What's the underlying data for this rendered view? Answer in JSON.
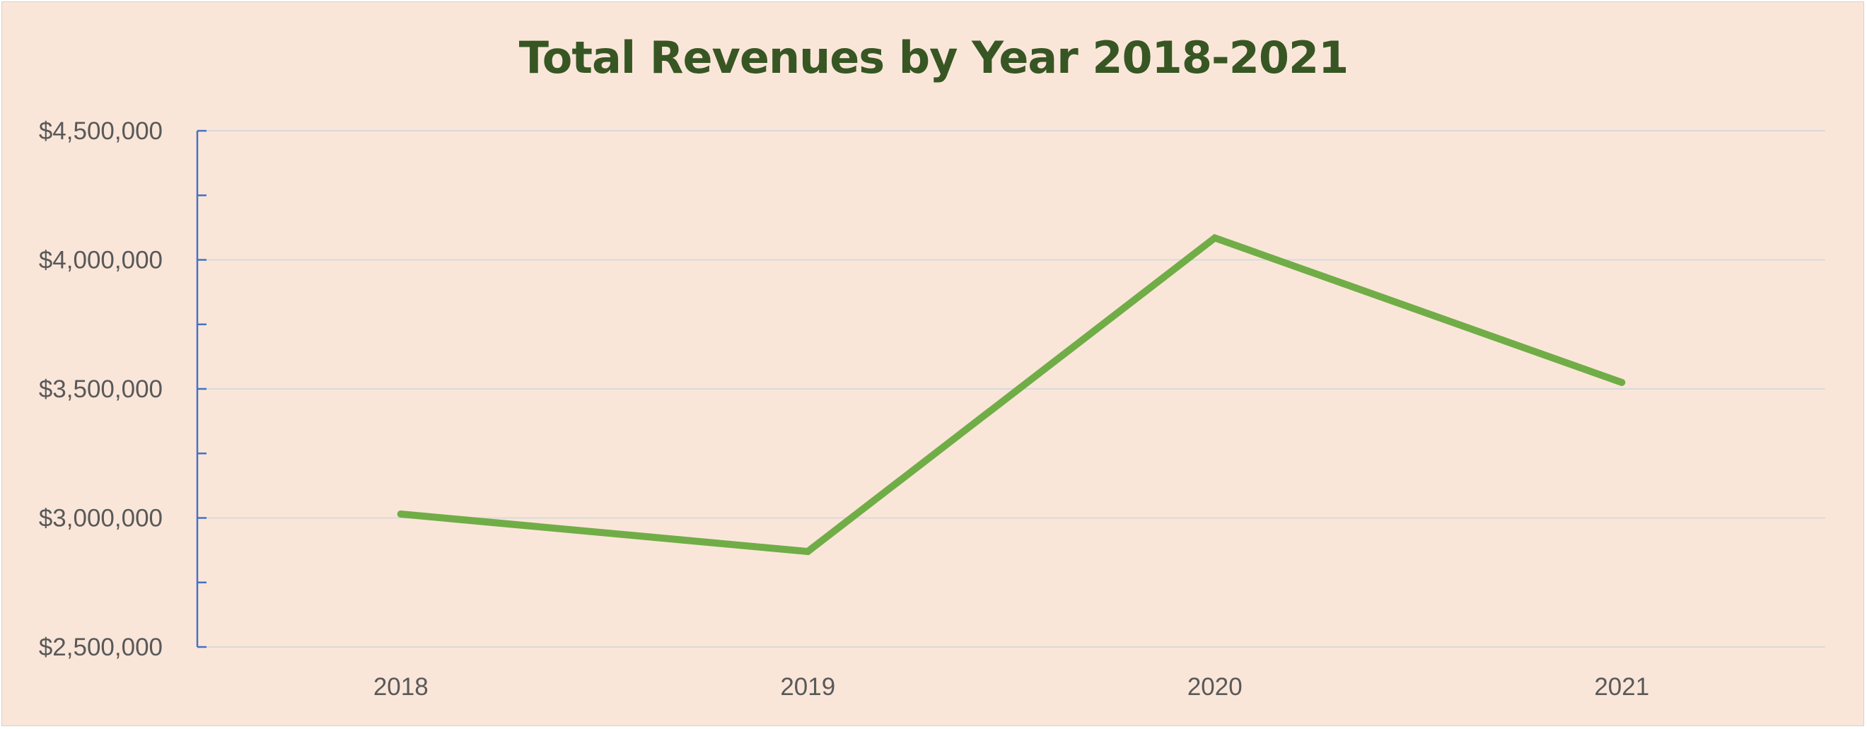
{
  "chart_data": {
    "type": "line",
    "title": "Total Revenues by Year 2018-2021",
    "xlabel": "",
    "ylabel": "",
    "categories": [
      "2018",
      "2019",
      "2020",
      "2021"
    ],
    "series": [
      {
        "values": [
          3015000,
          2870000,
          4085000,
          3525000
        ]
      }
    ],
    "ylim": [
      2500000,
      4500000
    ],
    "yticks": [
      4500000,
      4000000,
      3500000,
      3000000,
      2500000
    ],
    "ytick_labels": [
      "$4,500,000",
      "$4,000,000",
      "$3,500,000",
      "$3,000,000",
      "$2,500,000"
    ],
    "grid": true,
    "legend": "none",
    "colors": {
      "line": "#70AD47",
      "title": "#375623",
      "gridline": "#D9D9D9",
      "axis": "#4472C4",
      "background": "#FAE6D9",
      "tick_text": "#595959"
    }
  }
}
